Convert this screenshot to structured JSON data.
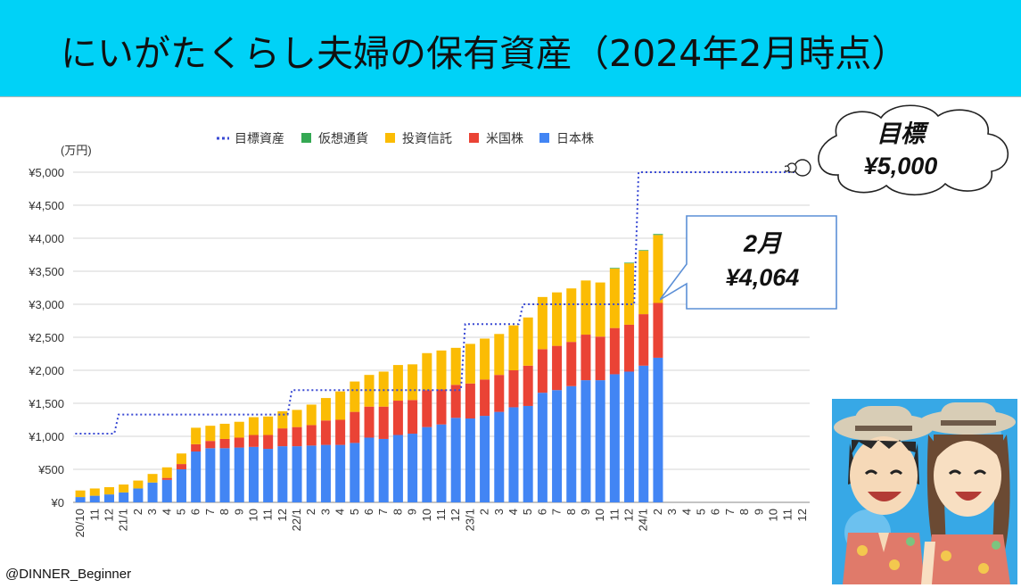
{
  "header": {
    "title": "にいがたくらし夫婦の保有資産（2024年2月時点）"
  },
  "footer": {
    "handle": "@DINNER_Beginner"
  },
  "goal_note": {
    "line1": "目標",
    "line2": "¥5,000"
  },
  "current_note": {
    "line1": "2月",
    "line2": "¥4,064"
  },
  "colors": {
    "banner": "#00d2f7",
    "japan": "#4285f4",
    "us": "#ea4335",
    "trust": "#fbbc04",
    "crypto": "#34a853",
    "target": "#3a4ad4"
  },
  "chart_data": {
    "type": "bar",
    "stacked": true,
    "unit_label": "(万円)",
    "ylim": [
      0,
      5000
    ],
    "yticks": [
      "¥0",
      "¥500",
      "¥1,000",
      "¥1,500",
      "¥2,000",
      "¥2,500",
      "¥3,000",
      "¥3,500",
      "¥4,000",
      "¥4,500",
      "¥5,000"
    ],
    "legend": [
      "目標資産",
      "仮想通貨",
      "投資信託",
      "米国株",
      "日本株"
    ],
    "legend_position": "top",
    "categories": [
      "20/10",
      "11",
      "12",
      "21/1",
      "2",
      "3",
      "4",
      "5",
      "6",
      "7",
      "8",
      "9",
      "10",
      "11",
      "12",
      "22/1",
      "2",
      "3",
      "4",
      "5",
      "6",
      "7",
      "8",
      "9",
      "10",
      "11",
      "12",
      "23/1",
      "2",
      "3",
      "4",
      "5",
      "6",
      "7",
      "8",
      "9",
      "10",
      "11",
      "12",
      "24/1",
      "2",
      "3",
      "4",
      "5",
      "6",
      "7",
      "8",
      "9",
      "10",
      "11",
      "12"
    ],
    "series": [
      {
        "name": "日本株",
        "values": [
          80,
          100,
          120,
          150,
          210,
          300,
          340,
          500,
          770,
          820,
          820,
          830,
          840,
          810,
          850,
          850,
          860,
          870,
          870,
          900,
          980,
          960,
          1020,
          1040,
          1140,
          1180,
          1280,
          1270,
          1310,
          1370,
          1440,
          1460,
          1660,
          1700,
          1760,
          1850,
          1850,
          1940,
          1980,
          2070,
          2190,
          null,
          null,
          null,
          null,
          null,
          null,
          null,
          null,
          null,
          null
        ]
      },
      {
        "name": "米国株",
        "values": [
          0,
          0,
          0,
          0,
          0,
          0,
          30,
          80,
          110,
          110,
          140,
          150,
          180,
          210,
          270,
          290,
          310,
          370,
          380,
          470,
          470,
          490,
          520,
          510,
          560,
          530,
          500,
          530,
          550,
          560,
          560,
          610,
          660,
          670,
          670,
          690,
          660,
          700,
          710,
          780,
          830,
          null,
          null,
          null,
          null,
          null,
          null,
          null,
          null,
          null,
          null
        ]
      },
      {
        "name": "投資信託",
        "values": [
          100,
          110,
          110,
          120,
          120,
          130,
          160,
          160,
          250,
          230,
          230,
          240,
          270,
          280,
          260,
          260,
          310,
          340,
          430,
          460,
          480,
          530,
          540,
          540,
          560,
          590,
          560,
          600,
          620,
          620,
          680,
          730,
          790,
          810,
          810,
          820,
          820,
          900,
          930,
          960,
          1030,
          null,
          null,
          null,
          null,
          null,
          null,
          null,
          null,
          null,
          null
        ]
      },
      {
        "name": "仮想通貨",
        "values": [
          0,
          0,
          0,
          0,
          0,
          0,
          0,
          0,
          0,
          0,
          0,
          0,
          0,
          0,
          0,
          0,
          0,
          0,
          0,
          0,
          0,
          0,
          0,
          0,
          0,
          0,
          0,
          0,
          0,
          0,
          0,
          0,
          0,
          0,
          0,
          0,
          0,
          10,
          10,
          10,
          14,
          null,
          null,
          null,
          null,
          null,
          null,
          null,
          null,
          null,
          null
        ]
      }
    ],
    "target": {
      "name": "目標資産",
      "values": [
        1040,
        1040,
        1040,
        1330,
        1330,
        1330,
        1330,
        1330,
        1330,
        1330,
        1330,
        1330,
        1330,
        1330,
        1330,
        1700,
        1700,
        1700,
        1700,
        1700,
        1700,
        1700,
        1700,
        1700,
        1700,
        1700,
        1700,
        2700,
        2700,
        2700,
        2700,
        3000,
        3000,
        3000,
        3000,
        3000,
        3000,
        3000,
        3000,
        5000,
        5000,
        5000,
        5000,
        5000,
        5000,
        5000,
        5000,
        5000,
        5000,
        5000,
        5000
      ]
    }
  }
}
